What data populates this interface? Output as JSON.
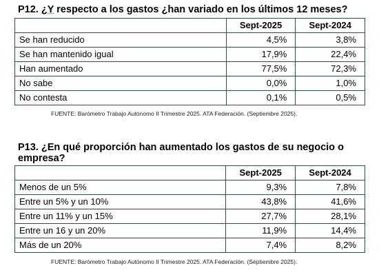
{
  "p12": {
    "title_prefix": "P12. ",
    "title_underlined": "¿Y",
    "title_rest": " respecto a los gastos ¿han variado en los últimos 12 meses?",
    "columns": [
      "",
      "Sept-2025",
      "Sept-2024"
    ],
    "rows": [
      [
        "Se han reducido",
        "4,5%",
        "3,8%"
      ],
      [
        "Se han mantenido igual",
        "17,9%",
        "22,4%"
      ],
      [
        "Han aumentado",
        "77,5%",
        "72,3%"
      ],
      [
        "No sabe",
        "0,0%",
        "1,0%"
      ],
      [
        "No contesta",
        "0,1%",
        "0,5%"
      ]
    ],
    "source": "FUENTE: Barómetro Trabajo Autónomo II Trimestre 2025. ATA Federación. (Septiembre 2025)."
  },
  "p13": {
    "title_line1": "P13. ¿En qué proporción han aumentado los gastos de su negocio o",
    "title_line2": "empresa?",
    "columns": [
      "",
      "Sept-2025",
      "Sept-2024"
    ],
    "rows": [
      [
        "Menos de un 5%",
        "9,3%",
        "7,8%"
      ],
      [
        "Entre un 5% y un 10%",
        "43,8%",
        "41,6%"
      ],
      [
        "Entre un 11% y un 15%",
        "27,7%",
        "28,1%"
      ],
      [
        "Entre un 16 y un 20%",
        "11,9%",
        "14,4%"
      ],
      [
        "Más de un 20%",
        "7,4%",
        "8,2%"
      ]
    ],
    "source": "FUENTE: Barómetro Trabajo Autónomo II Trimestre 2025. ATA Federación. (Septiembre 2025)."
  },
  "colors": {
    "table_border": "#1f5a2e",
    "underline": "#3a6fd8"
  }
}
